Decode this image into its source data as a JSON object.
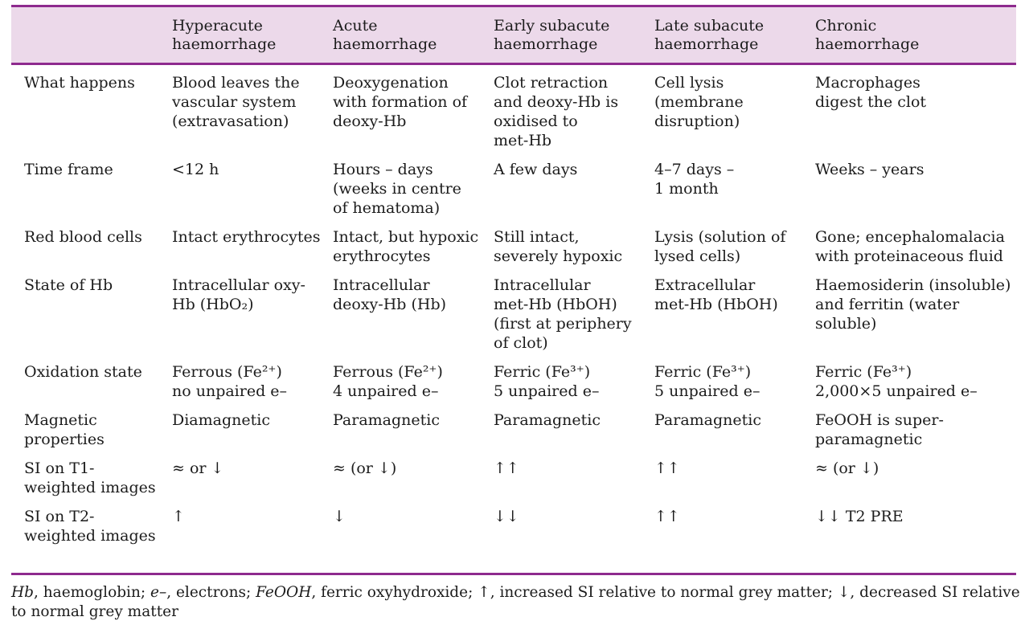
{
  "accent_color": "#8e2a8e",
  "header_bg": "#ecd9ea",
  "columns": [
    "",
    "Hyperacute\nhaemorrhage",
    "Acute\nhaemorrhage",
    "Early subacute\nhaemorrhage",
    "Late subacute\nhaemorrhage",
    "Chronic\nhaemorrhage"
  ],
  "rows": [
    {
      "label": "What happens",
      "cells": [
        "Blood leaves the\nvascular system\n(extravasation)",
        "Deoxygenation\nwith formation of\ndeoxy-Hb",
        "Clot retraction\nand deoxy-Hb is\noxidised to\nmet-Hb",
        "Cell lysis\n(membrane\ndisruption)",
        "Macrophages\ndigest the clot"
      ]
    },
    {
      "label": "Time frame",
      "cells": [
        "<12 h",
        "Hours – days\n(weeks in centre\nof hematoma)",
        "A few days",
        "4–7 days –\n1 month",
        "Weeks – years"
      ]
    },
    {
      "label": "Red blood cells",
      "cells": [
        "Intact erythrocytes",
        "Intact, but hypoxic\nerythrocytes",
        "Still intact,\nseverely hypoxic",
        "Lysis (solution of\nlysed cells)",
        "Gone; encephalomalacia\nwith proteinaceous fluid"
      ]
    },
    {
      "label": "State of Hb",
      "cells": [
        "Intracellular oxy-\nHb (HbO₂)",
        "Intracellular\ndeoxy-Hb (Hb)",
        "Intracellular\nmet-Hb (HbOH)\n(first at periphery\nof clot)",
        "Extracellular\nmet-Hb (HbOH)",
        "Haemosiderin (insoluble)\nand ferritin (water\nsoluble)"
      ]
    },
    {
      "label": "Oxidation state",
      "cells": [
        "Ferrous (Fe²⁺)\nno unpaired e–",
        "Ferrous (Fe²⁺)\n4 unpaired e–",
        "Ferric (Fe³⁺)\n5 unpaired e–",
        "Ferric (Fe³⁺)\n5 unpaired e–",
        "Ferric (Fe³⁺)\n2,000×5 unpaired e–"
      ]
    },
    {
      "label": "Magnetic\nproperties",
      "cells": [
        "Diamagnetic",
        "Paramagnetic",
        "Paramagnetic",
        "Paramagnetic",
        "FeOOH is super-\nparamagnetic"
      ]
    },
    {
      "label": "SI on T1-\nweighted images",
      "cells": [
        "≈ or ↓",
        "≈ (or ↓)",
        "↑↑",
        "↑↑",
        "≈ (or ↓)"
      ]
    },
    {
      "label": "SI on T2-\nweighted images",
      "cells": [
        "↑",
        "↓",
        "↓↓",
        "↑↑",
        "↓↓ T2 PRE"
      ]
    }
  ],
  "footnote": {
    "parts": [
      {
        "text": "Hb",
        "italic": true
      },
      {
        "text": ", haemoglobin; ",
        "italic": false
      },
      {
        "text": "e–",
        "italic": true
      },
      {
        "text": ", electrons; ",
        "italic": false
      },
      {
        "text": "FeOOH",
        "italic": true
      },
      {
        "text": ", ferric oxyhydroxide; ↑, increased SI relative to normal grey matter; ↓, decreased SI relative to normal grey matter",
        "italic": false
      }
    ]
  }
}
